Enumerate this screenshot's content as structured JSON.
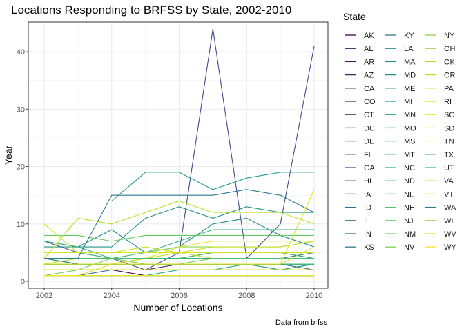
{
  "chart_data": {
    "type": "line",
    "title": "Locations Responding to BRFSS by State, 2002-2010",
    "xlabel": "Number of Locations",
    "ylabel": "Year",
    "caption": "Data from brfss",
    "legend_title": "State",
    "legend_position": "right",
    "grid": true,
    "xlim": [
      2002,
      2010
    ],
    "ylim": [
      0,
      45
    ],
    "x_ticks": [
      2002,
      2004,
      2006,
      2008,
      2010
    ],
    "y_ticks": [
      0,
      10,
      20,
      30,
      40
    ],
    "x": [
      2002,
      2003,
      2004,
      2005,
      2006,
      2007,
      2008,
      2009,
      2010
    ],
    "series": [
      {
        "name": "AK",
        "color": "#440154",
        "values": [
          null,
          null,
          2,
          1,
          1,
          1,
          1,
          1,
          1
        ]
      },
      {
        "name": "AL",
        "color": "#450a5d",
        "values": [
          1,
          1,
          1,
          1,
          1,
          1,
          1,
          1,
          1
        ]
      },
      {
        "name": "AR",
        "color": "#461566",
        "values": [
          1,
          1,
          1,
          1,
          1,
          1,
          1,
          1,
          1
        ]
      },
      {
        "name": "AZ",
        "color": "#471e6e",
        "values": [
          2,
          2,
          2,
          2,
          3,
          3,
          3,
          2,
          3
        ]
      },
      {
        "name": "CA",
        "color": "#472775",
        "values": [
          1,
          1,
          1,
          1,
          1,
          1,
          1,
          1,
          1
        ]
      },
      {
        "name": "CO",
        "color": "#472f7c",
        "values": [
          4,
          4,
          4,
          4,
          4,
          4,
          4,
          4,
          4
        ]
      },
      {
        "name": "CT",
        "color": "#453781",
        "values": [
          5,
          5,
          5,
          5,
          5,
          5,
          5,
          5,
          5
        ]
      },
      {
        "name": "DC",
        "color": "#433f85",
        "values": [
          1,
          1,
          1,
          1,
          1,
          1,
          1,
          1,
          1
        ]
      },
      {
        "name": "DE",
        "color": "#414688",
        "values": [
          3,
          3,
          3,
          3,
          3,
          3,
          3,
          3,
          3
        ]
      },
      {
        "name": "FL",
        "color": "#3e4d8a",
        "values": [
          7,
          5,
          4,
          2,
          5,
          44,
          4,
          10,
          41
        ]
      },
      {
        "name": "GA",
        "color": "#3b548c",
        "values": [
          1,
          1,
          1,
          1,
          1,
          1,
          1,
          1,
          1
        ]
      },
      {
        "name": "HI",
        "color": "#385b8d",
        "values": [
          4,
          4,
          4,
          4,
          4,
          4,
          4,
          4,
          4
        ]
      },
      {
        "name": "IA",
        "color": "#35628d",
        "values": [
          3,
          3,
          3,
          3,
          3,
          3,
          3,
          3,
          2
        ]
      },
      {
        "name": "ID",
        "color": "#32688e",
        "values": [
          1,
          1,
          2,
          2,
          2,
          2,
          2,
          2,
          2
        ]
      },
      {
        "name": "IL",
        "color": "#2f6e8e",
        "values": [
          3,
          3,
          3,
          3,
          3,
          3,
          3,
          3,
          3
        ]
      },
      {
        "name": "IN",
        "color": "#2c748e",
        "values": [
          1,
          1,
          1,
          1,
          1,
          1,
          1,
          1,
          1
        ]
      },
      {
        "name": "KS",
        "color": "#2a7a8e",
        "values": [
          4,
          3,
          3,
          3,
          3,
          3,
          3,
          3,
          3
        ]
      },
      {
        "name": "KY",
        "color": "#287f8e",
        "values": [
          4,
          3,
          3,
          4,
          4,
          4,
          4,
          4,
          5
        ]
      },
      {
        "name": "LA",
        "color": "#26858e",
        "values": [
          4,
          4,
          4,
          4,
          4,
          4,
          4,
          4,
          4
        ]
      },
      {
        "name": "MA",
        "color": "#238a8d",
        "values": [
          7,
          6,
          9,
          5,
          6,
          10,
          11,
          8,
          6
        ]
      },
      {
        "name": "MD",
        "color": "#21908c",
        "values": [
          6,
          6,
          6,
          11,
          13,
          11,
          13,
          12,
          12
        ]
      },
      {
        "name": "ME",
        "color": "#20958b",
        "values": [
          3,
          3,
          3,
          3,
          3,
          3,
          3,
          3,
          3
        ]
      },
      {
        "name": "MI",
        "color": "#1f9b89",
        "values": [
          4,
          4,
          4,
          4,
          4,
          5,
          5,
          5,
          4
        ]
      },
      {
        "name": "MN",
        "color": "#1fa187",
        "values": [
          4,
          4,
          4,
          4,
          4,
          5,
          5,
          5,
          5
        ]
      },
      {
        "name": "MO",
        "color": "#21a685",
        "values": [
          1,
          1,
          1,
          1,
          2,
          2,
          3,
          3,
          3
        ]
      },
      {
        "name": "MS",
        "color": "#26ac81",
        "values": [
          3,
          3,
          3,
          3,
          3,
          3,
          3,
          2,
          3
        ]
      },
      {
        "name": "MT",
        "color": "#2db17e",
        "values": [
          1,
          1,
          1,
          1,
          1,
          1,
          1,
          1,
          1
        ]
      },
      {
        "name": "NC",
        "color": "#36b779",
        "values": [
          7,
          6,
          4,
          5,
          7,
          9,
          9,
          9,
          9
        ]
      },
      {
        "name": "ND",
        "color": "#40bc73",
        "values": [
          3,
          3,
          3,
          3,
          3,
          3,
          3,
          3,
          3
        ]
      },
      {
        "name": "NE",
        "color": "#4bc16d",
        "values": [
          5,
          5,
          4,
          4,
          4,
          5,
          5,
          5,
          5
        ]
      },
      {
        "name": "NH",
        "color": "#56c666",
        "values": [
          5,
          5,
          5,
          5,
          5,
          5,
          5,
          5,
          5
        ]
      },
      {
        "name": "NJ",
        "color": "#63cb5f",
        "values": [
          8,
          8,
          7,
          8,
          8,
          8,
          8,
          8,
          8
        ]
      },
      {
        "name": "NM",
        "color": "#70cf56",
        "values": [
          1,
          2,
          4,
          3,
          3,
          4,
          4,
          4,
          4
        ]
      },
      {
        "name": "NV",
        "color": "#7ed34e",
        "values": [
          2,
          2,
          2,
          2,
          2,
          2,
          2,
          2,
          2
        ]
      },
      {
        "name": "NY",
        "color": "#8cd646",
        "values": [
          5,
          5,
          5,
          5,
          6,
          6,
          6,
          6,
          7
        ]
      },
      {
        "name": "OH",
        "color": "#9bda3d",
        "values": [
          5,
          5,
          5,
          5,
          5,
          5,
          5,
          5,
          5
        ]
      },
      {
        "name": "OK",
        "color": "#aadc34",
        "values": [
          2,
          2,
          2,
          2,
          2,
          2,
          2,
          2,
          2
        ]
      },
      {
        "name": "OR",
        "color": "#b9df2b",
        "values": [
          3,
          4,
          4,
          4,
          5,
          4,
          4,
          4,
          4
        ]
      },
      {
        "name": "PA",
        "color": "#c9e123",
        "values": [
          10,
          5,
          5,
          6,
          5,
          6,
          6,
          6,
          7
        ]
      },
      {
        "name": "RI",
        "color": "#d8e21e",
        "values": [
          5,
          5,
          5,
          5,
          5,
          5,
          5,
          5,
          5
        ]
      },
      {
        "name": "SC",
        "color": "#e6e41c",
        "values": [
          3,
          3,
          3,
          4,
          6,
          7,
          7,
          7,
          7
        ]
      },
      {
        "name": "SD",
        "color": "#f3e51e",
        "values": [
          2,
          2,
          2,
          2,
          2,
          2,
          2,
          2,
          2
        ]
      },
      {
        "name": "TN",
        "color": "#fde725",
        "values": [
          2,
          2,
          2,
          2,
          2,
          2,
          2,
          2,
          2
        ]
      },
      {
        "name": "TX",
        "color": "#1f968b",
        "values": [
          null,
          14,
          14,
          19,
          19,
          16,
          18,
          19,
          19
        ]
      },
      {
        "name": "UT",
        "color": "#3cbb75",
        "values": [
          4,
          4,
          4,
          4,
          4,
          4,
          4,
          4,
          4
        ]
      },
      {
        "name": "VA",
        "color": "#bddf26",
        "values": [
          4,
          11,
          10,
          12,
          14,
          12,
          12,
          12,
          10
        ]
      },
      {
        "name": "VT",
        "color": "#d0e11c",
        "values": [
          3,
          3,
          3,
          3,
          3,
          3,
          3,
          3,
          6
        ]
      },
      {
        "name": "WA",
        "color": "#2a788e",
        "values": [
          4,
          4,
          15,
          15,
          15,
          15,
          16,
          15,
          12
        ]
      },
      {
        "name": "WI",
        "color": "#95d840",
        "values": [
          1,
          1,
          1,
          1,
          1,
          1,
          1,
          1,
          1
        ]
      },
      {
        "name": "WV",
        "color": "#dde318",
        "values": [
          1,
          1,
          3,
          3,
          3,
          3,
          3,
          3,
          16
        ]
      },
      {
        "name": "WY",
        "color": "#f8e621",
        "values": [
          1,
          1,
          1,
          1,
          1,
          1,
          1,
          1,
          1
        ]
      }
    ]
  }
}
